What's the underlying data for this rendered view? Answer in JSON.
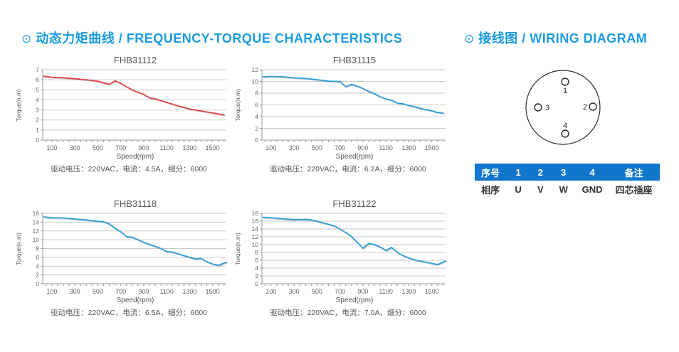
{
  "left_section": {
    "bullet_icon": "⊙",
    "heading": "动态力矩曲线 / FREQUENCY-TORQUE CHARACTERISTICS",
    "accent_color": "#1a9be4"
  },
  "right_section": {
    "bullet_icon": "⊙",
    "heading": "接线图 / WIRING DIAGRAM",
    "accent_color": "#1a9be4"
  },
  "chart_data": [
    {
      "type": "line",
      "title": "FHB31112",
      "xlabel": "Speed(rpm)",
      "ylabel": "Torque(n.m)",
      "caption": "驱动电压：220VAC，电流：4.5A，细分：6000",
      "line_color": "#e6484a",
      "xlim": [
        20,
        1620
      ],
      "ylim": [
        0,
        7
      ],
      "ytick_step": 1,
      "xtick_minor_step": 50,
      "xticks_labeled": [
        100,
        300,
        500,
        700,
        900,
        1100,
        1300,
        1500
      ],
      "grid": "horizontal",
      "legend": "none",
      "x": [
        30,
        100,
        200,
        300,
        400,
        500,
        600,
        650,
        700,
        750,
        800,
        850,
        900,
        950,
        1000,
        1100,
        1200,
        1300,
        1400,
        1500,
        1600
      ],
      "values": [
        6.35,
        6.25,
        6.2,
        6.1,
        6.0,
        5.85,
        5.55,
        5.9,
        5.65,
        5.3,
        5.0,
        4.75,
        4.55,
        4.2,
        4.1,
        3.75,
        3.4,
        3.1,
        2.9,
        2.7,
        2.5
      ]
    },
    {
      "type": "line",
      "title": "FHB31115",
      "xlabel": "Speed(rpm)",
      "ylabel": "Torque(n.m)",
      "caption": "驱动电压：220VAC，电流：6.2A，细分：6000",
      "line_color": "#2f9fdd",
      "xlim": [
        20,
        1620
      ],
      "ylim": [
        0,
        12
      ],
      "ytick_step": 2,
      "xtick_minor_step": 50,
      "xticks_labeled": [
        100,
        300,
        500,
        700,
        900,
        1100,
        1300,
        1500
      ],
      "grid": "horizontal",
      "legend": "none",
      "x": [
        30,
        100,
        200,
        300,
        400,
        500,
        600,
        700,
        750,
        800,
        850,
        900,
        950,
        1000,
        1050,
        1100,
        1150,
        1200,
        1250,
        1300,
        1350,
        1400,
        1450,
        1500,
        1550,
        1600
      ],
      "values": [
        10.8,
        10.85,
        10.8,
        10.6,
        10.5,
        10.3,
        10.05,
        10.0,
        9.1,
        9.5,
        9.2,
        8.8,
        8.3,
        7.9,
        7.4,
        7.0,
        6.8,
        6.3,
        6.2,
        5.9,
        5.7,
        5.4,
        5.2,
        5.0,
        4.7,
        4.6
      ]
    },
    {
      "type": "line",
      "title": "FHB31118",
      "xlabel": "Speed(rpm)",
      "ylabel": "Torque(n.m)",
      "caption": "驱动电压：220VAC，电流：6.5A，细分：6000",
      "line_color": "#2f9fdd",
      "xlim": [
        20,
        1620
      ],
      "ylim": [
        0,
        16
      ],
      "ytick_step": 2,
      "xtick_minor_step": 50,
      "xticks_labeled": [
        100,
        300,
        500,
        700,
        900,
        1100,
        1300,
        1500
      ],
      "grid": "horizontal",
      "legend": "none",
      "x": [
        30,
        100,
        200,
        300,
        400,
        500,
        550,
        600,
        650,
        700,
        750,
        800,
        850,
        900,
        950,
        1000,
        1050,
        1100,
        1150,
        1200,
        1250,
        1300,
        1350,
        1400,
        1450,
        1500,
        1550,
        1620
      ],
      "values": [
        15.2,
        15.0,
        14.95,
        14.7,
        14.5,
        14.2,
        14.1,
        13.6,
        12.6,
        11.8,
        10.7,
        10.55,
        10.0,
        9.4,
        8.9,
        8.5,
        8.0,
        7.3,
        7.2,
        6.8,
        6.4,
        6.0,
        5.6,
        5.75,
        5.0,
        4.5,
        4.2,
        4.9
      ]
    },
    {
      "type": "line",
      "title": "FHB31122",
      "xlabel": "Speed(rpm)",
      "ylabel": "Torque(n.m)",
      "caption": "驱动电压：220VAC，电流：7.0A，细分：6000",
      "line_color": "#2f9fdd",
      "xlim": [
        20,
        1620
      ],
      "ylim": [
        0,
        18
      ],
      "ytick_step": 2,
      "xtick_minor_step": 50,
      "xticks_labeled": [
        100,
        300,
        500,
        700,
        900,
        1100,
        1300,
        1500
      ],
      "grid": "horizontal",
      "legend": "none",
      "x": [
        30,
        100,
        200,
        300,
        400,
        450,
        500,
        550,
        600,
        650,
        700,
        750,
        800,
        850,
        900,
        950,
        1000,
        1050,
        1100,
        1150,
        1200,
        1250,
        1300,
        1350,
        1400,
        1450,
        1500,
        1550,
        1620
      ],
      "values": [
        17.0,
        16.9,
        16.6,
        16.4,
        16.45,
        16.3,
        16.0,
        15.6,
        15.2,
        14.8,
        14.0,
        13.1,
        12.1,
        10.6,
        9.1,
        10.3,
        10.0,
        9.4,
        8.5,
        9.3,
        8.0,
        7.2,
        6.6,
        6.1,
        5.8,
        5.5,
        5.2,
        4.9,
        5.8
      ]
    }
  ],
  "wiring": {
    "pins": [
      {
        "label": "1",
        "position": "top"
      },
      {
        "label": "2",
        "position": "right"
      },
      {
        "label": "3",
        "position": "left"
      },
      {
        "label": "4",
        "position": "bottom"
      }
    ],
    "table": {
      "header_bg": "#1177cd",
      "header": [
        "序号",
        "1",
        "2",
        "3",
        "4",
        "备注"
      ],
      "row": [
        "相序",
        "U",
        "V",
        "W",
        "GND",
        "四芯插座"
      ]
    }
  }
}
